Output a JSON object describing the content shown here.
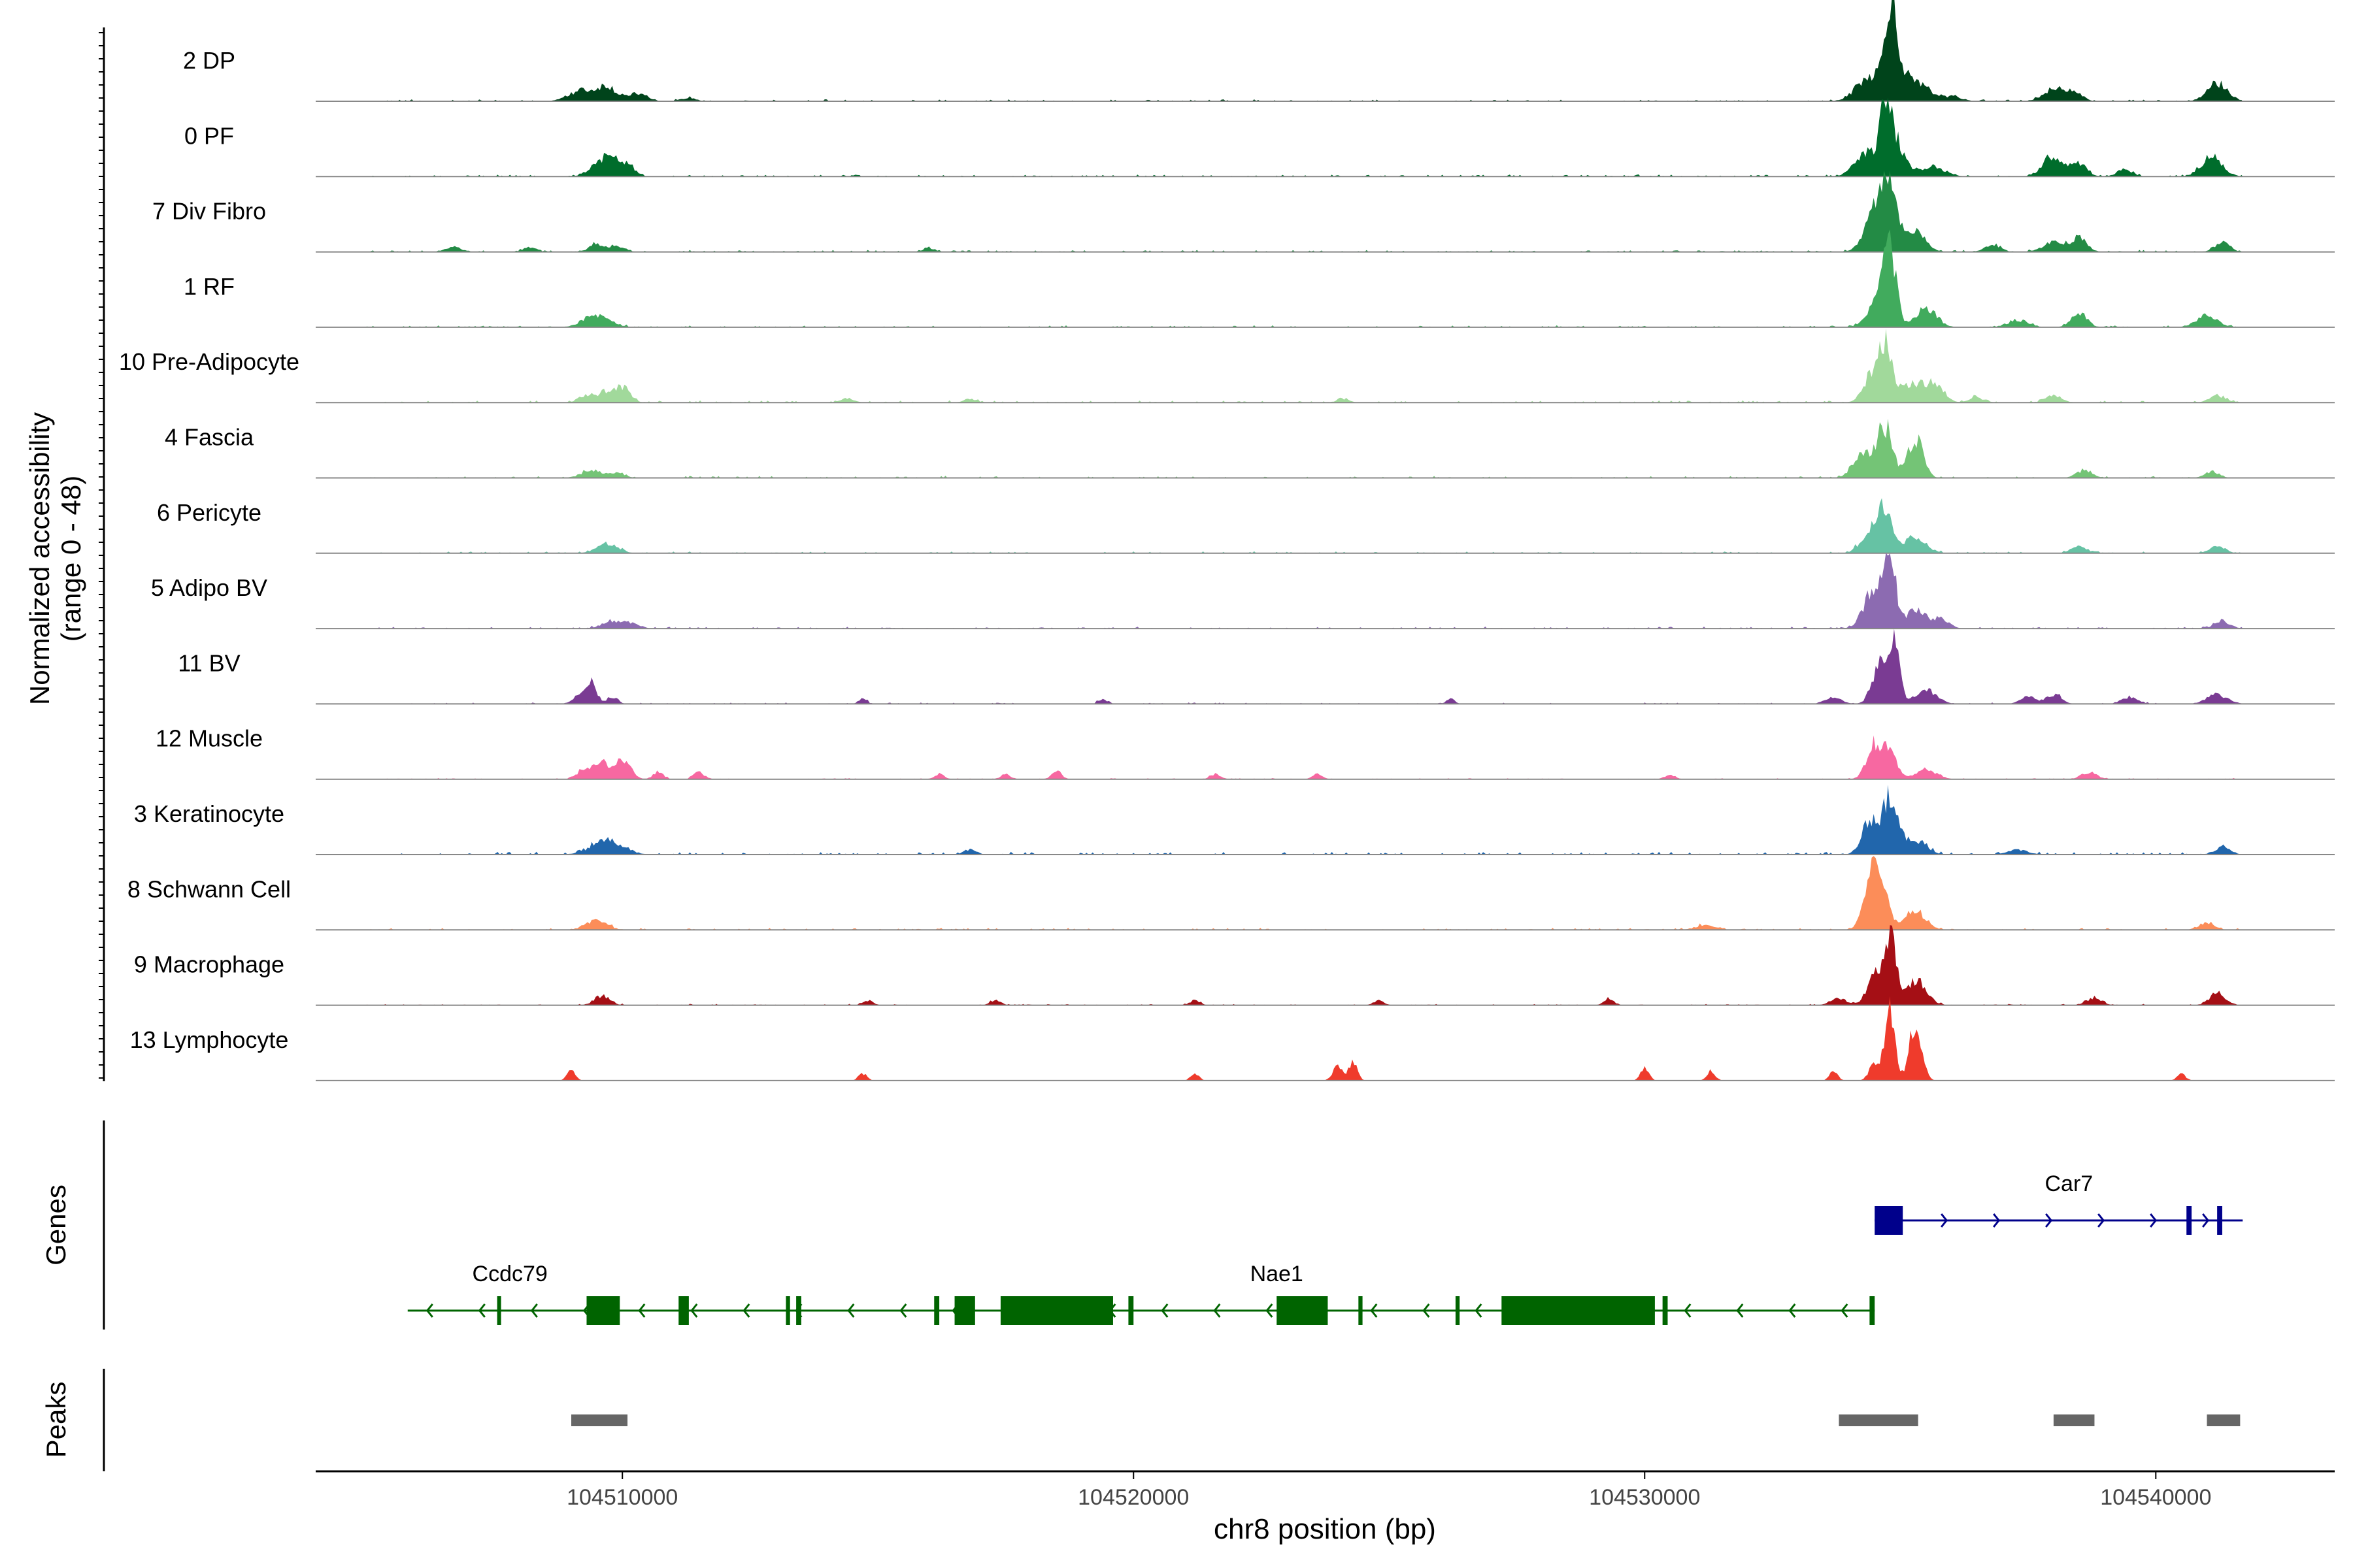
{
  "chart_data": {
    "type": "area",
    "chromosome": "chr8",
    "xlabel": "chr8 position (bp)",
    "ylabel_line1": "Normalized accessibility",
    "ylabel_line2": "(range 0 - 48)",
    "xlim": [
      104504000,
      104543500
    ],
    "xticks": [
      104510000,
      104520000,
      104530000,
      104540000
    ],
    "xtick_labels": [
      "104510000",
      "104520000",
      "104530000",
      "104540000"
    ],
    "ylim": [
      0,
      48
    ],
    "tracks": [
      {
        "name": "2 DP",
        "color": "#00441b",
        "noise": 0.35,
        "peaks": [
          [
            104509200,
            2.2,
            250
          ],
          [
            104509700,
            3.0,
            180
          ],
          [
            104510300,
            1.6,
            180
          ],
          [
            104511300,
            0.7,
            150
          ],
          [
            104534400,
            5.0,
            250
          ],
          [
            104534800,
            13.0,
            90
          ],
          [
            104534900,
            9.0,
            200
          ],
          [
            104535400,
            3.0,
            200
          ],
          [
            104536000,
            1.0,
            200
          ],
          [
            104538000,
            2.5,
            200
          ],
          [
            104538400,
            2.0,
            150
          ],
          [
            104541200,
            3.8,
            200
          ]
        ]
      },
      {
        "name": "0 PF",
        "color": "#006d2c",
        "noise": 0.4,
        "peaks": [
          [
            104509700,
            4.0,
            250
          ],
          [
            104510100,
            1.5,
            150
          ],
          [
            104534700,
            11.0,
            120
          ],
          [
            104534900,
            7.0,
            180
          ],
          [
            104534300,
            5.0,
            200
          ],
          [
            104535600,
            2.0,
            250
          ],
          [
            104538000,
            4.0,
            200
          ],
          [
            104538500,
            2.5,
            150
          ],
          [
            104539400,
            1.5,
            150
          ],
          [
            104541100,
            4.2,
            200
          ]
        ]
      },
      {
        "name": "7 Div Fibro",
        "color": "#238b45",
        "noise": 0.35,
        "peaks": [
          [
            104506700,
            1.0,
            150
          ],
          [
            104508200,
            1.0,
            120
          ],
          [
            104509500,
            1.5,
            150
          ],
          [
            104509900,
            1.2,
            150
          ],
          [
            104516000,
            0.8,
            120
          ],
          [
            104534500,
            8.0,
            200
          ],
          [
            104534800,
            13.0,
            150
          ],
          [
            104535300,
            4.0,
            200
          ],
          [
            104536800,
            1.5,
            150
          ],
          [
            104538000,
            2.0,
            200
          ],
          [
            104538500,
            3.0,
            150
          ],
          [
            104541300,
            2.0,
            150
          ]
        ]
      },
      {
        "name": "1 RF",
        "color": "#41ab5d",
        "noise": 0.35,
        "peaks": [
          [
            104509500,
            2.5,
            250
          ],
          [
            104534600,
            6.0,
            200
          ],
          [
            104534800,
            13.0,
            120
          ],
          [
            104535500,
            4.0,
            200
          ],
          [
            104537300,
            1.5,
            200
          ],
          [
            104538500,
            3.0,
            150
          ],
          [
            104541000,
            2.5,
            200
          ]
        ]
      },
      {
        "name": "10 Pre-Adipocyte",
        "color": "#a1d99b",
        "noise": 0.4,
        "peaks": [
          [
            104509300,
            1.5,
            150
          ],
          [
            104509700,
            2.0,
            150
          ],
          [
            104510000,
            3.0,
            150
          ],
          [
            104514400,
            1.0,
            120
          ],
          [
            104516800,
            0.8,
            120
          ],
          [
            104524100,
            0.8,
            120
          ],
          [
            104534700,
            12.0,
            120
          ],
          [
            104534400,
            5.0,
            150
          ],
          [
            104535300,
            4.0,
            300
          ],
          [
            104535700,
            2.5,
            150
          ],
          [
            104536500,
            1.0,
            150
          ],
          [
            104538000,
            1.5,
            150
          ],
          [
            104541200,
            1.5,
            150
          ]
        ]
      },
      {
        "name": "4 Fascia",
        "color": "#74c476",
        "noise": 0.35,
        "peaks": [
          [
            104509400,
            1.5,
            200
          ],
          [
            104509900,
            1.0,
            150
          ],
          [
            104534300,
            5.0,
            200
          ],
          [
            104534700,
            10.0,
            150
          ],
          [
            104535300,
            8.0,
            150
          ],
          [
            104538600,
            1.5,
            150
          ],
          [
            104541100,
            1.2,
            150
          ]
        ]
      },
      {
        "name": "6 Pericyte",
        "color": "#66c2a4",
        "noise": 0.35,
        "peaks": [
          [
            104509700,
            2.0,
            200
          ],
          [
            104534700,
            8.0,
            150
          ],
          [
            104534400,
            4.0,
            180
          ],
          [
            104535300,
            3.5,
            200
          ],
          [
            104538500,
            1.5,
            150
          ],
          [
            104541200,
            1.5,
            150
          ]
        ]
      },
      {
        "name": "5 Adipo BV",
        "color": "#8c6bb1",
        "noise": 0.35,
        "peaks": [
          [
            104509800,
            1.5,
            200
          ],
          [
            104510200,
            1.0,
            150
          ],
          [
            104534500,
            8.0,
            200
          ],
          [
            104534800,
            16.0,
            100
          ],
          [
            104535300,
            4.0,
            200
          ],
          [
            104535800,
            2.0,
            150
          ],
          [
            104541300,
            1.5,
            150
          ]
        ]
      },
      {
        "name": "11 BV",
        "color": "#7a3b93",
        "noise": 0.25,
        "peaks": [
          [
            104509200,
            2.0,
            150
          ],
          [
            104509400,
            4.0,
            100
          ],
          [
            104509800,
            1.5,
            100
          ],
          [
            104514700,
            1.0,
            80
          ],
          [
            104519400,
            1.0,
            80
          ],
          [
            104526200,
            1.0,
            80
          ],
          [
            104533700,
            1.5,
            150
          ],
          [
            104534600,
            8.0,
            150
          ],
          [
            104534900,
            12.0,
            100
          ],
          [
            104535500,
            3.0,
            200
          ],
          [
            104537500,
            1.5,
            150
          ],
          [
            104538000,
            2.0,
            150
          ],
          [
            104539500,
            1.5,
            150
          ],
          [
            104541200,
            2.0,
            200
          ]
        ]
      },
      {
        "name": "12 Muscle",
        "color": "#f768a1",
        "noise": 0.2,
        "peaks": [
          [
            104509300,
            2.5,
            150
          ],
          [
            104509600,
            3.5,
            100
          ],
          [
            104510000,
            4.0,
            150
          ],
          [
            104510700,
            1.5,
            100
          ],
          [
            104511500,
            1.5,
            100
          ],
          [
            104516200,
            1.0,
            100
          ],
          [
            104517500,
            1.0,
            100
          ],
          [
            104518500,
            1.5,
            100
          ],
          [
            104521600,
            1.0,
            100
          ],
          [
            104523600,
            1.0,
            100
          ],
          [
            104530500,
            1.0,
            100
          ],
          [
            104534500,
            7.0,
            150
          ],
          [
            104534800,
            5.0,
            150
          ],
          [
            104535500,
            2.0,
            200
          ],
          [
            104538700,
            1.5,
            150
          ]
        ]
      },
      {
        "name": "3 Keratinocyte",
        "color": "#2166ac",
        "noise": 0.5,
        "peaks": [
          [
            104509700,
            3.0,
            300
          ],
          [
            104516800,
            1.0,
            120
          ],
          [
            104534400,
            7.0,
            150
          ],
          [
            104534800,
            12.0,
            150
          ],
          [
            104535300,
            3.0,
            200
          ],
          [
            104537300,
            1.0,
            200
          ],
          [
            104541300,
            1.5,
            150
          ]
        ]
      },
      {
        "name": "8 Schwann Cell",
        "color": "#fc8d59",
        "noise": 0.35,
        "peaks": [
          [
            104509500,
            2.0,
            200
          ],
          [
            104531200,
            1.0,
            200
          ],
          [
            104534600,
            12.0,
            150
          ],
          [
            104534400,
            6.0,
            150
          ],
          [
            104535300,
            4.0,
            200
          ],
          [
            104541000,
            1.5,
            150
          ]
        ]
      },
      {
        "name": "9 Macrophage",
        "color": "#a50f15",
        "noise": 0.25,
        "peaks": [
          [
            104509600,
            2.0,
            150
          ],
          [
            104514800,
            1.0,
            100
          ],
          [
            104517300,
            1.0,
            100
          ],
          [
            104521200,
            1.0,
            100
          ],
          [
            104524800,
            1.0,
            100
          ],
          [
            104529300,
            1.2,
            100
          ],
          [
            104533800,
            1.5,
            150
          ],
          [
            104534500,
            6.0,
            150
          ],
          [
            104534800,
            14.0,
            120
          ],
          [
            104535300,
            5.0,
            200
          ],
          [
            104538800,
            1.5,
            150
          ],
          [
            104541200,
            2.5,
            150
          ]
        ]
      },
      {
        "name": "13 Lymphocyte",
        "color": "#ef3b2c",
        "noise": 0.0,
        "peaks": [
          [
            104509000,
            2.0,
            80
          ],
          [
            104514700,
            1.5,
            80
          ],
          [
            104521200,
            1.5,
            80
          ],
          [
            104524000,
            3.0,
            100
          ],
          [
            104524300,
            4.0,
            80
          ],
          [
            104530000,
            2.5,
            80
          ],
          [
            104531300,
            2.0,
            80
          ],
          [
            104533700,
            2.0,
            80
          ],
          [
            104534500,
            4.0,
            100
          ],
          [
            104534800,
            14.0,
            100
          ],
          [
            104535300,
            12.0,
            120
          ],
          [
            104540500,
            1.5,
            80
          ]
        ]
      }
    ],
    "genes": [
      {
        "name": "Ccdc79",
        "label_pos": 104507800,
        "strand": "-",
        "color": "#006400",
        "start": 104505800,
        "end": 104509950,
        "exons": [
          [
            104509300,
            104509950
          ],
          [
            104507550,
            104507580
          ]
        ]
      },
      {
        "name": "Nae1",
        "label_pos": 104522800,
        "strand": "-",
        "color": "#006400",
        "start": 104509950,
        "end": 104534500,
        "exons": [
          [
            104511100,
            104511300
          ],
          [
            104513200,
            104513280
          ],
          [
            104513400,
            104513500
          ],
          [
            104516100,
            104516200
          ],
          [
            104516500,
            104516900
          ],
          [
            104517400,
            104519600
          ],
          [
            104519900,
            104520000
          ],
          [
            104522800,
            104523800
          ],
          [
            104524400,
            104524480
          ],
          [
            104526300,
            104526380
          ],
          [
            104527200,
            104530200
          ],
          [
            104530350,
            104530450
          ],
          [
            104534400,
            104534500
          ]
        ]
      },
      {
        "name": "Car7",
        "label_pos": 104538300,
        "strand": "+",
        "color": "#00008b",
        "start": 104534500,
        "end": 104541700,
        "exons": [
          [
            104534500,
            104535050
          ],
          [
            104540600,
            104540700
          ],
          [
            104541200,
            104541300
          ]
        ]
      }
    ],
    "peaks_track": [
      [
        104509000,
        104510100
      ],
      [
        104533800,
        104535350
      ],
      [
        104538000,
        104538800
      ],
      [
        104541000,
        104541650
      ]
    ],
    "genes_label": "Genes",
    "peaks_label": "Peaks"
  }
}
